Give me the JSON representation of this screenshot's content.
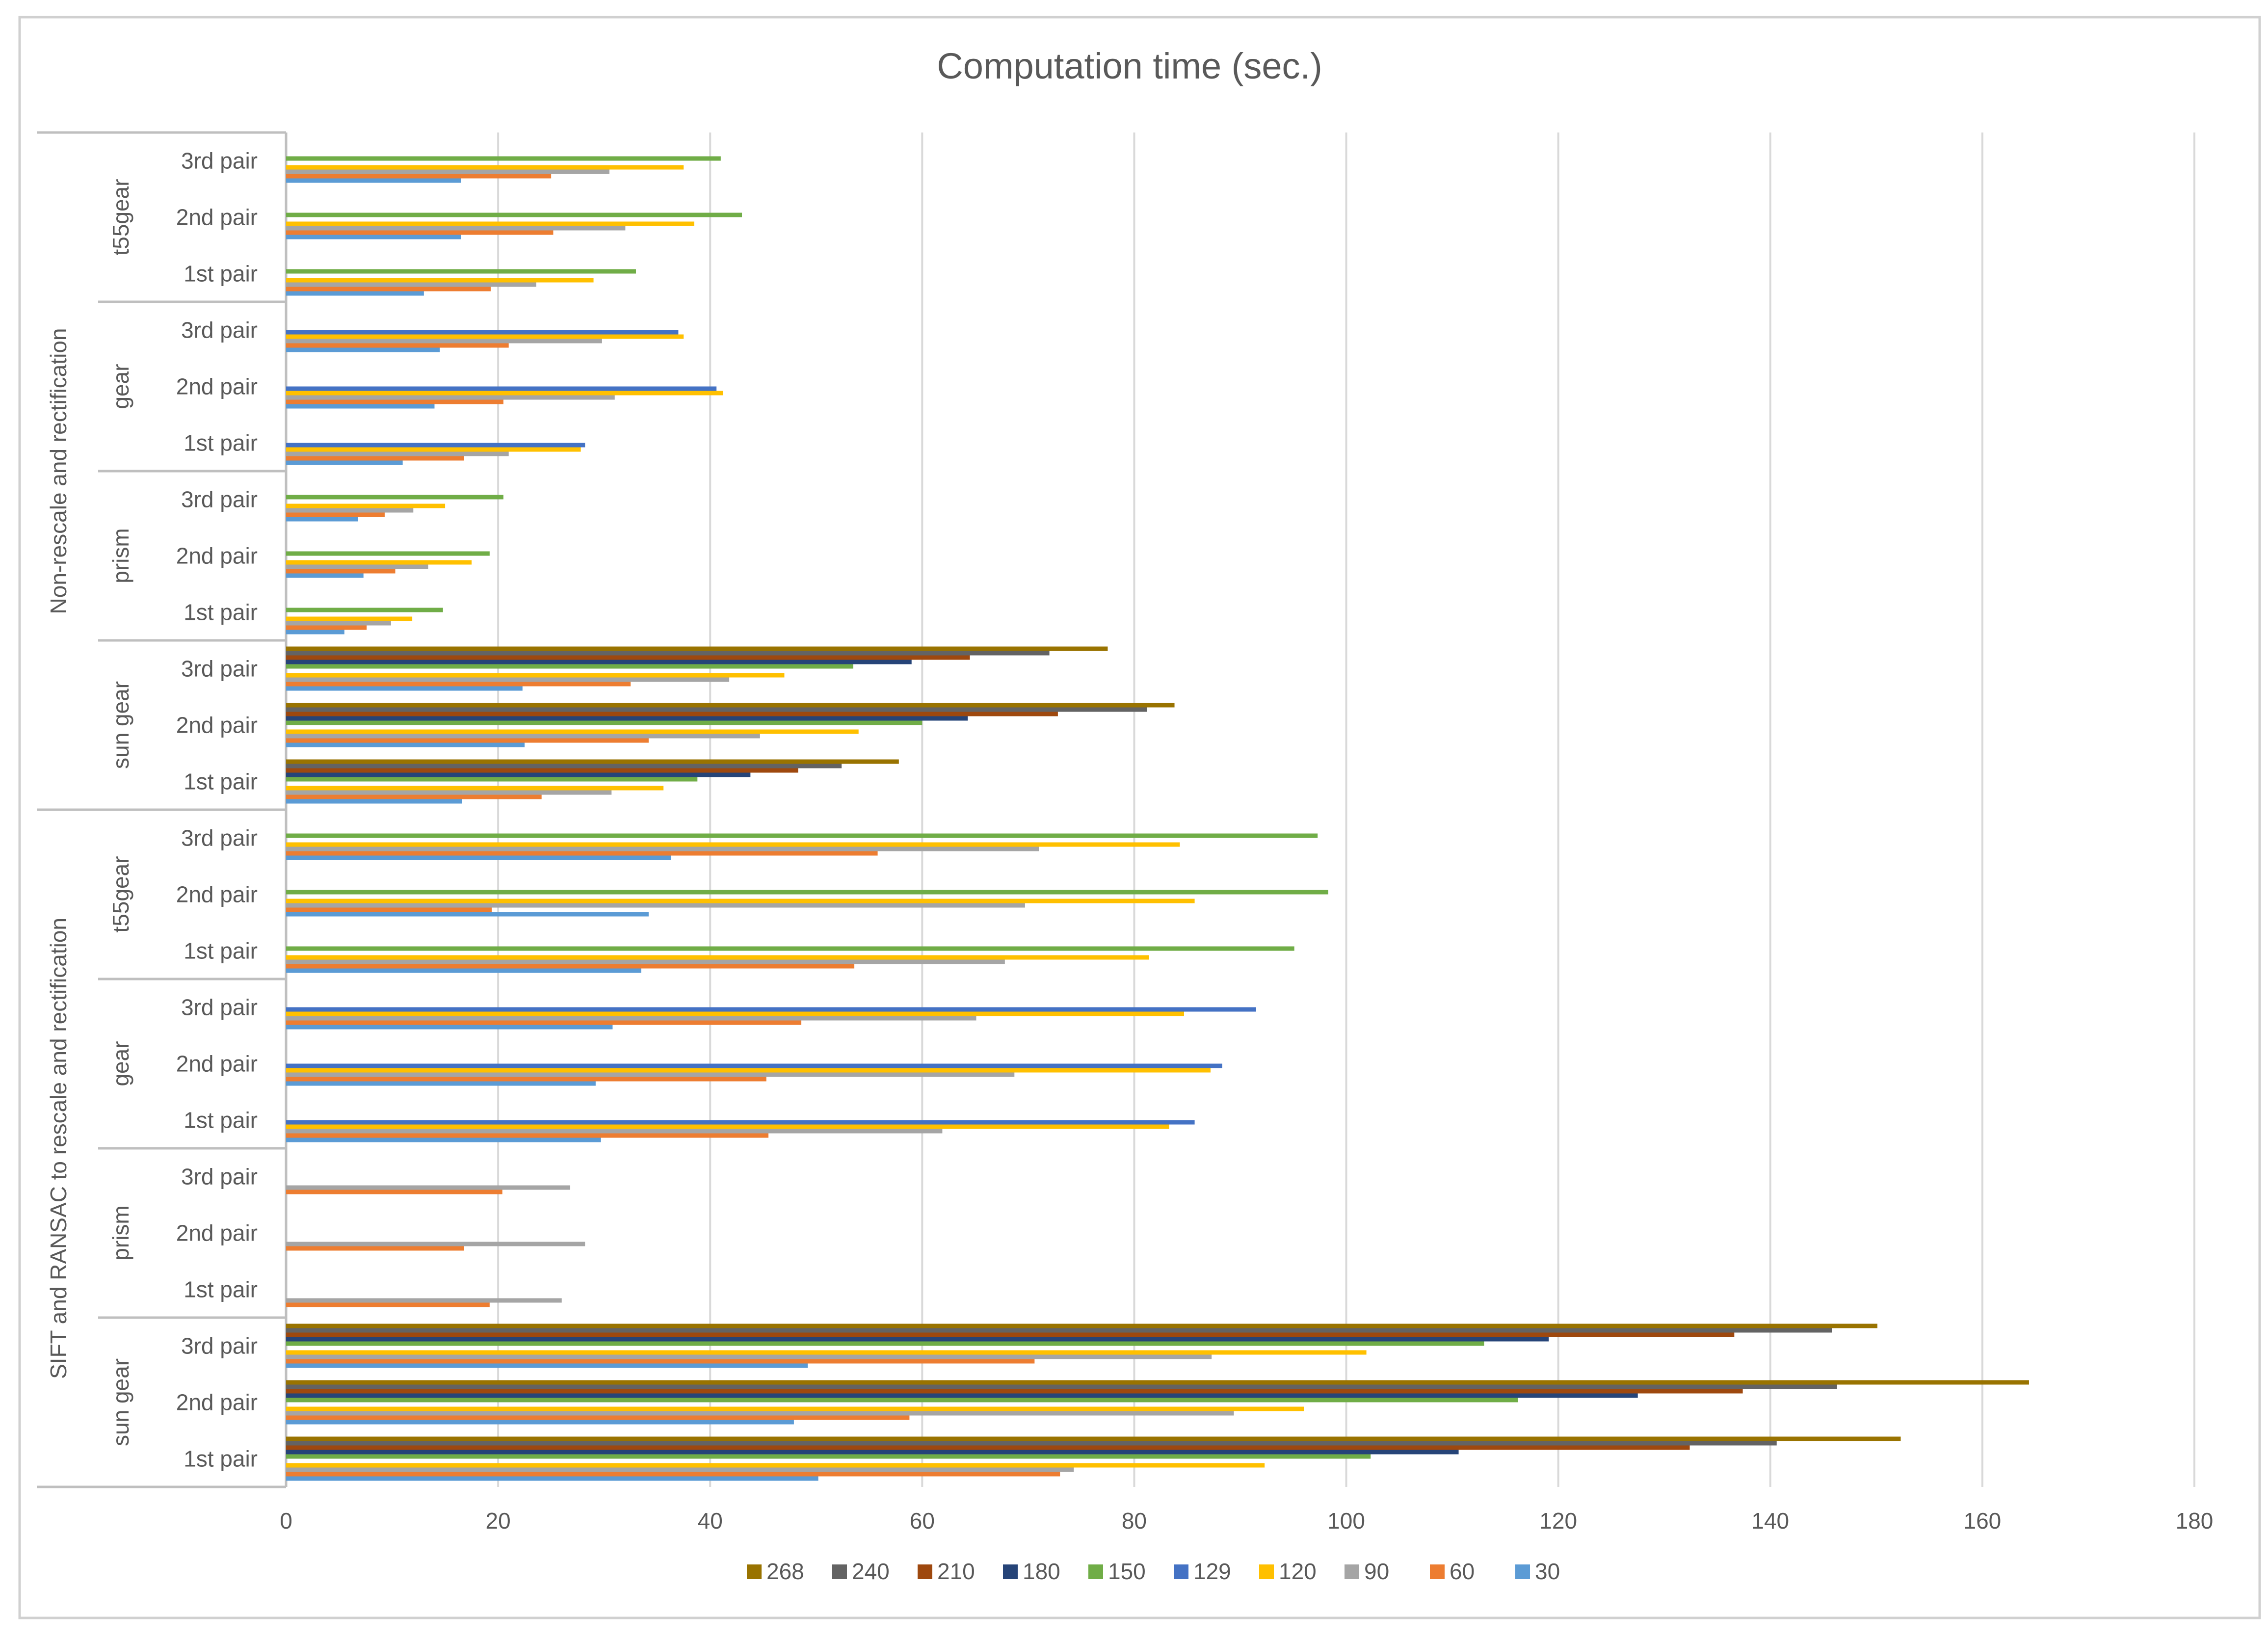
{
  "chart_data": {
    "type": "bar",
    "orientation": "horizontal",
    "title": "Computation time (sec.)",
    "xlabel": "",
    "ylabel": "",
    "xlim": [
      0,
      180
    ],
    "x_ticks": [
      0,
      20,
      40,
      60,
      80,
      100,
      120,
      140,
      160,
      180
    ],
    "grid": "vertical",
    "legend_position": "bottom",
    "colors": {
      "268": "#997300",
      "240": "#636363",
      "210": "#9E480E",
      "180": "#264478",
      "150": "#70AD47",
      "129": "#4472C4",
      "120": "#FFC000",
      "90": "#A5A5A5",
      "60": "#ED7D31",
      "30": "#5B9BD5"
    },
    "legend_order": [
      "268",
      "240",
      "210",
      "180",
      "150",
      "129",
      "120",
      "90",
      "60",
      "30"
    ],
    "bar_draw_order": [
      "30",
      "60",
      "90",
      "120",
      "129",
      "150",
      "180",
      "210",
      "240",
      "268"
    ],
    "groups": [
      {
        "label": "Non-rescale and rectification",
        "objects": [
          {
            "label": "t55gear",
            "pairs": [
              {
                "label": "3rd pair",
                "values": {
                  "30": 16.5,
                  "60": 25,
                  "90": 30.5,
                  "120": 37.5,
                  "150": 41
                }
              },
              {
                "label": "2nd pair",
                "values": {
                  "30": 16.5,
                  "60": 25.2,
                  "90": 32,
                  "120": 38.5,
                  "150": 43
                }
              },
              {
                "label": "1st pair",
                "values": {
                  "30": 13,
                  "60": 19.3,
                  "90": 23.6,
                  "120": 29,
                  "150": 33
                }
              }
            ]
          },
          {
            "label": "gear",
            "pairs": [
              {
                "label": "3rd pair",
                "values": {
                  "30": 14.5,
                  "60": 21,
                  "90": 29.8,
                  "120": 37.5,
                  "129": 37
                }
              },
              {
                "label": "2nd pair",
                "values": {
                  "30": 14,
                  "60": 20.5,
                  "90": 31,
                  "120": 41.2,
                  "129": 40.6
                }
              },
              {
                "label": "1st pair",
                "values": {
                  "30": 11,
                  "60": 16.8,
                  "90": 21,
                  "120": 27.8,
                  "129": 28.2
                }
              }
            ]
          },
          {
            "label": "prism",
            "pairs": [
              {
                "label": "3rd pair",
                "values": {
                  "30": 6.8,
                  "60": 9.3,
                  "90": 12,
                  "120": 15,
                  "150": 20.5
                }
              },
              {
                "label": "2nd pair",
                "values": {
                  "30": 7.3,
                  "60": 10.3,
                  "90": 13.4,
                  "120": 17.5,
                  "150": 19.2
                }
              },
              {
                "label": "1st pair",
                "values": {
                  "30": 5.5,
                  "60": 7.6,
                  "90": 9.9,
                  "120": 11.9,
                  "150": 14.8
                }
              }
            ]
          },
          {
            "label": "sun gear",
            "pairs": [
              {
                "label": "3rd pair",
                "values": {
                  "30": 22.3,
                  "60": 32.5,
                  "90": 41.8,
                  "120": 47,
                  "150": 53.5,
                  "180": 59,
                  "210": 64.5,
                  "240": 72,
                  "268": 77.5
                }
              },
              {
                "label": "2nd pair",
                "values": {
                  "30": 22.5,
                  "60": 34.2,
                  "90": 44.7,
                  "120": 54,
                  "150": 60,
                  "180": 64.3,
                  "210": 72.8,
                  "240": 81.2,
                  "268": 83.8
                }
              },
              {
                "label": "1st pair",
                "values": {
                  "30": 16.6,
                  "60": 24.1,
                  "90": 30.7,
                  "120": 35.6,
                  "150": 38.8,
                  "180": 43.8,
                  "210": 48.3,
                  "240": 52.4,
                  "268": 57.8
                }
              }
            ]
          }
        ]
      },
      {
        "label": "SIFT and RANSAC to rescale and rectification",
        "objects": [
          {
            "label": "t55gear",
            "pairs": [
              {
                "label": "3rd pair",
                "values": {
                  "30": 36.3,
                  "60": 55.8,
                  "90": 71,
                  "120": 84.3,
                  "150": 97.3
                }
              },
              {
                "label": "2nd pair",
                "values": {
                  "30": 34.2,
                  "60": 19.4,
                  "90": 69.7,
                  "120": 85.7,
                  "150": 98.3
                }
              },
              {
                "label": "1st pair",
                "values": {
                  "30": 33.5,
                  "60": 53.6,
                  "90": 67.8,
                  "120": 81.4,
                  "150": 95.1
                }
              }
            ]
          },
          {
            "label": "gear",
            "pairs": [
              {
                "label": "3rd pair",
                "values": {
                  "30": 30.8,
                  "60": 48.6,
                  "90": 65.1,
                  "120": 84.7,
                  "129": 91.5
                }
              },
              {
                "label": "2nd pair",
                "values": {
                  "30": 29.2,
                  "60": 45.3,
                  "90": 68.7,
                  "120": 87.2,
                  "129": 88.3
                }
              },
              {
                "label": "1st pair",
                "values": {
                  "30": 29.7,
                  "60": 45.5,
                  "90": 61.9,
                  "120": 83.3,
                  "129": 85.7
                }
              }
            ]
          },
          {
            "label": "prism",
            "pairs": [
              {
                "label": "3rd pair",
                "values": {
                  "60": 20.4,
                  "90": 26.8
                }
              },
              {
                "label": "2nd pair",
                "values": {
                  "60": 16.8,
                  "90": 28.2
                }
              },
              {
                "label": "1st pair",
                "values": {
                  "60": 19.2,
                  "90": 26
                }
              }
            ]
          },
          {
            "label": "sun gear",
            "pairs": [
              {
                "label": "3rd pair",
                "values": {
                  "30": 49.2,
                  "60": 70.6,
                  "90": 87.3,
                  "120": 101.9,
                  "150": 113,
                  "180": 119.1,
                  "210": 136.6,
                  "240": 145.8,
                  "268": 150.1
                }
              },
              {
                "label": "2nd pair",
                "values": {
                  "30": 47.9,
                  "60": 58.8,
                  "90": 89.4,
                  "120": 96,
                  "150": 116.2,
                  "180": 127.5,
                  "210": 137.4,
                  "240": 146.3,
                  "268": 164.4
                }
              },
              {
                "label": "1st pair",
                "values": {
                  "30": 50.2,
                  "60": 73,
                  "90": 74.3,
                  "120": 92.3,
                  "150": 102.3,
                  "180": 110.6,
                  "210": 132.4,
                  "240": 140.6,
                  "268": 152.3
                }
              }
            ]
          }
        ]
      }
    ]
  }
}
